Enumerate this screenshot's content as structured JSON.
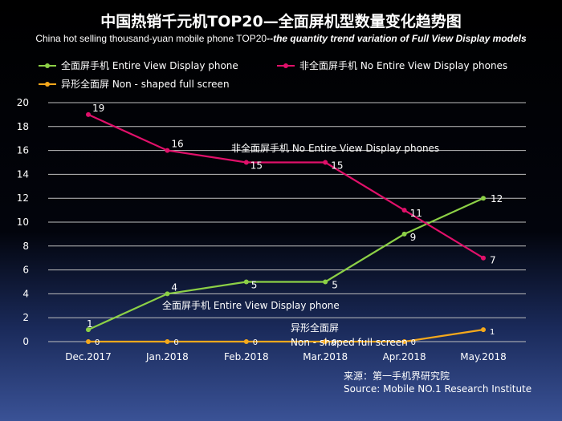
{
  "header": {
    "title": "中国热销千元机TOP20—全面屏机型数量变化趋势图",
    "subtitle_prefix": "China hot selling thousand-yuan mobile phone TOP20",
    "subtitle_bold": "--the quantity trend variation of Full View Display models"
  },
  "source": {
    "line1": "来源：第一手机界研究院",
    "line2": "Source: Mobile NO.1 Research Institute"
  },
  "chart_data": {
    "type": "line",
    "categories": [
      "Dec.2017",
      "Jan.2018",
      "Feb.2018",
      "Mar.2018",
      "Apr.2018",
      "May.2018"
    ],
    "ylim": [
      0,
      20
    ],
    "yticks": [
      0,
      2,
      4,
      6,
      8,
      10,
      12,
      14,
      16,
      18,
      20
    ],
    "grid": true,
    "legend_position": "top-left",
    "series": [
      {
        "name": "全面屏手机  Entire View Display phone",
        "color": "#8cd046",
        "values": [
          1,
          4,
          5,
          5,
          9,
          12
        ],
        "annotation": "全面屏手机  Entire View Display phone"
      },
      {
        "name": "非全面屏手机  No Entire View Display phones",
        "color": "#e0106a",
        "values": [
          19,
          16,
          15,
          15,
          11,
          7
        ],
        "annotation": "非全面屏手机  No Entire View Display phones"
      },
      {
        "name": "异形全面屏  Non - shaped full screen",
        "color": "#f4a81c",
        "values": [
          0,
          0,
          0,
          0,
          0,
          1
        ],
        "annotation_line1": "异形全面屏",
        "annotation_line2": "Non - shaped full screen"
      }
    ]
  }
}
